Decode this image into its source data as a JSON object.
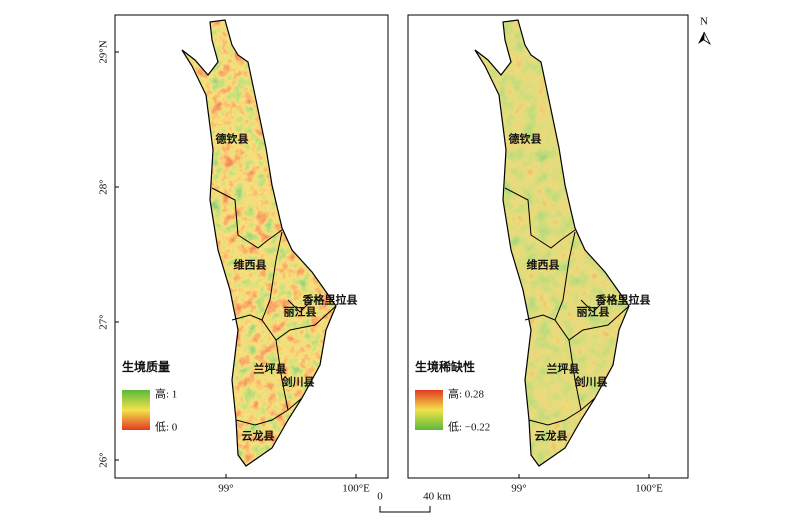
{
  "north": "N",
  "scale_bar": {
    "start": "0",
    "end": "40 km"
  },
  "panels": [
    {
      "lat_labels": [
        "29°N",
        "28°",
        "27°",
        "26°"
      ],
      "lon_labels": [
        "99°",
        "100°E"
      ],
      "counties": [
        "德钦县",
        "维西县",
        "香格里拉县",
        "丽江县",
        "兰坪县",
        "剑川县",
        "云龙县"
      ],
      "legend": {
        "title": "生境质量",
        "high": "高: 1",
        "low": "低: 0"
      }
    },
    {
      "lon_labels": [
        "99°",
        "100°E"
      ],
      "counties": [
        "德钦县",
        "维西县",
        "香格里拉县",
        "丽江县",
        "兰坪县",
        "剑川县",
        "云龙县"
      ],
      "legend": {
        "title": "生境稀缺性",
        "high": "高: 0.28",
        "low": "低: −0.22"
      }
    }
  ]
}
